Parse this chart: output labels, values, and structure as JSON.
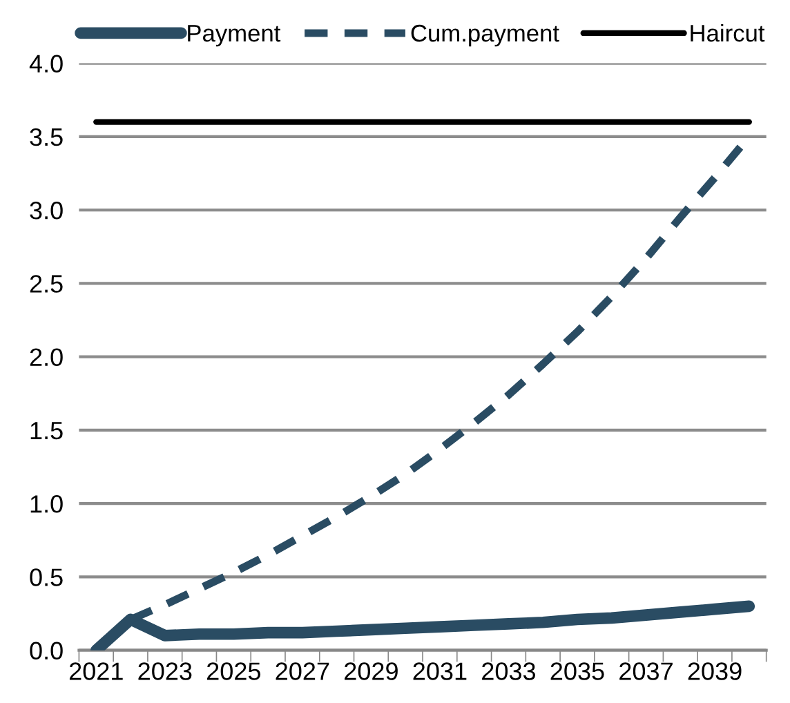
{
  "chart_data": {
    "type": "line",
    "categories": [
      "2021",
      null,
      "2023",
      null,
      "2025",
      null,
      "2027",
      null,
      "2029",
      null,
      "2031",
      null,
      "2033",
      null,
      "2035",
      null,
      "2037",
      null,
      "2039",
      null
    ],
    "series": [
      {
        "name": "Payment",
        "color": "#2a4c63",
        "line_style": "solid",
        "values": [
          0,
          0.21,
          0.1,
          0.11,
          0.11,
          0.12,
          0.12,
          0.13,
          0.14,
          0.15,
          0.16,
          0.17,
          0.18,
          0.19,
          0.21,
          0.22,
          0.24,
          0.26,
          0.28,
          0.3
        ]
      },
      {
        "name": "Cum.payment",
        "color": "#2a4c63",
        "line_style": "dashed",
        "values": [
          null,
          0.21,
          0.31,
          0.42,
          0.53,
          0.65,
          0.78,
          0.91,
          1.05,
          1.2,
          1.37,
          1.55,
          1.74,
          1.95,
          2.17,
          2.41,
          2.67,
          2.95,
          3.22,
          3.5
        ]
      },
      {
        "name": "Haircut",
        "color": "#000000",
        "line_style": "solid",
        "values": [
          3.6,
          3.6,
          3.6,
          3.6,
          3.6,
          3.6,
          3.6,
          3.6,
          3.6,
          3.6,
          3.6,
          3.6,
          3.6,
          3.6,
          3.6,
          3.6,
          3.6,
          3.6,
          3.6,
          3.6
        ]
      }
    ],
    "ylim": [
      0,
      4.0
    ],
    "yticks": [
      {
        "value": 0,
        "label": "0.0"
      },
      {
        "value": 0.5,
        "label": "0.5"
      },
      {
        "value": 1.0,
        "label": "1.0"
      },
      {
        "value": 1.5,
        "label": "1.5"
      },
      {
        "value": 2.0,
        "label": "2.0"
      },
      {
        "value": 2.5,
        "label": "2.5"
      },
      {
        "value": 3.0,
        "label": "3.0"
      },
      {
        "value": 3.5,
        "label": "3.5"
      },
      {
        "value": 4.0,
        "label": "4.0"
      }
    ],
    "grid": "y",
    "legend": "top",
    "marker": "none"
  }
}
